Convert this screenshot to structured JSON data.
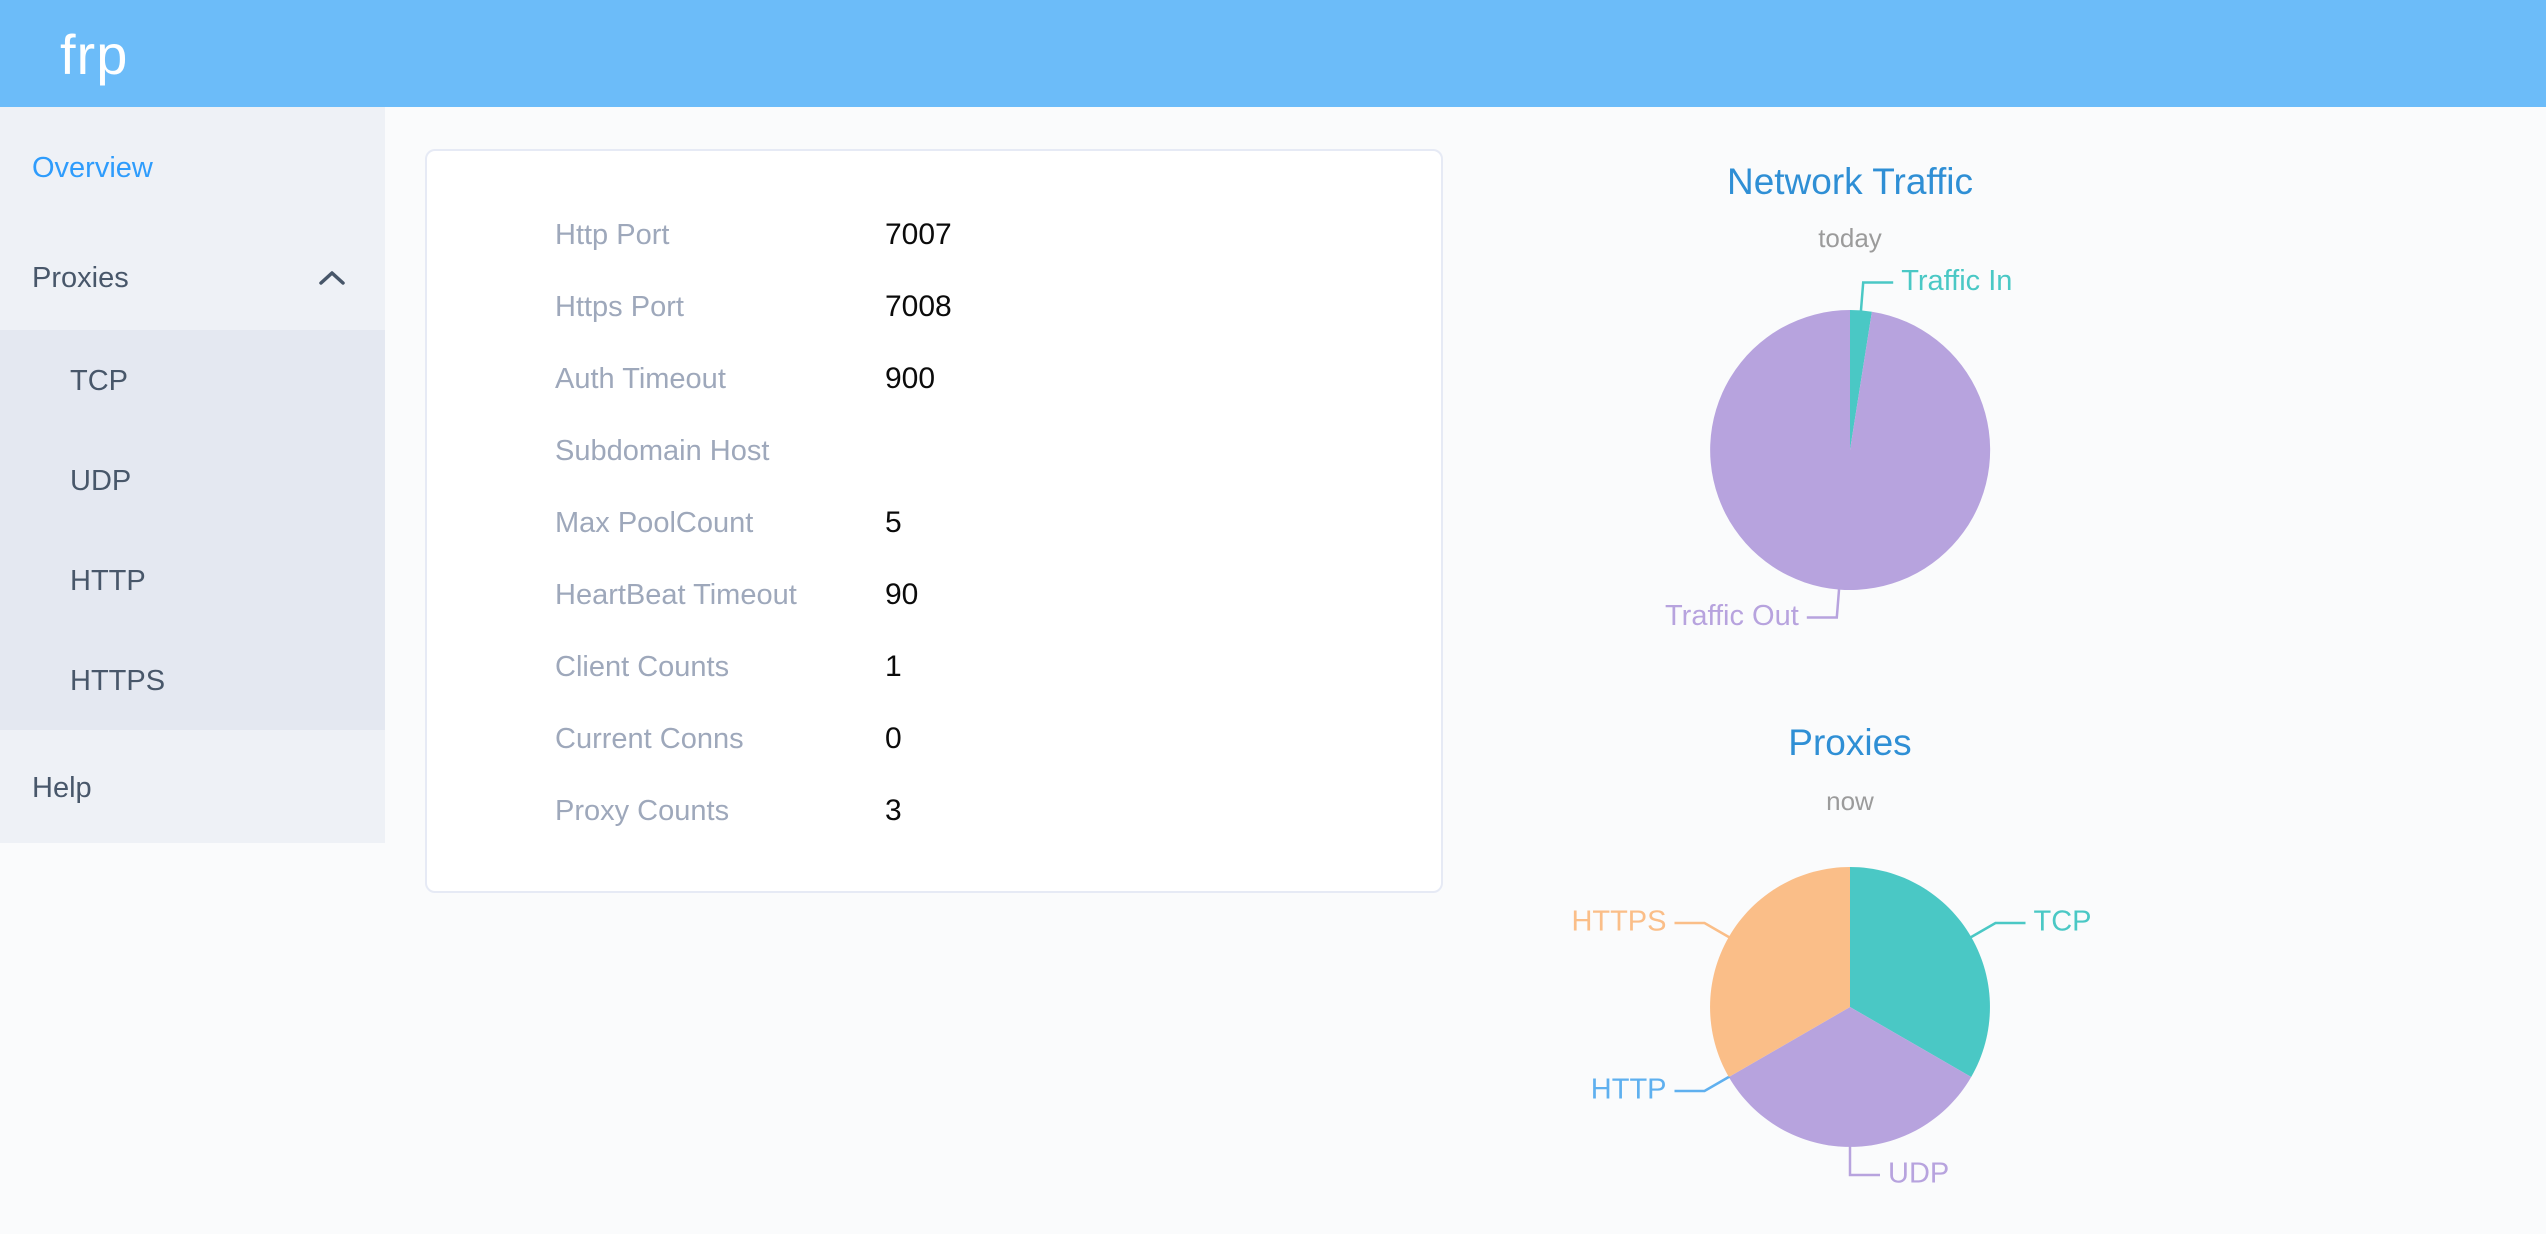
{
  "header": {
    "logo": "frp"
  },
  "sidebar": {
    "overview": "Overview",
    "proxies": "Proxies",
    "proxies_children": [
      "TCP",
      "UDP",
      "HTTP",
      "HTTPS"
    ],
    "help": "Help"
  },
  "card": {
    "rows": [
      {
        "label": "Http Port",
        "value": "7007"
      },
      {
        "label": "Https Port",
        "value": "7008"
      },
      {
        "label": "Auth Timeout",
        "value": "900"
      },
      {
        "label": "Subdomain Host",
        "value": ""
      },
      {
        "label": "Max PoolCount",
        "value": "5"
      },
      {
        "label": "HeartBeat Timeout",
        "value": "90"
      },
      {
        "label": "Client Counts",
        "value": "1"
      },
      {
        "label": "Current Conns",
        "value": "0"
      },
      {
        "label": "Proxy Counts",
        "value": "3"
      }
    ]
  },
  "chart_data": [
    {
      "type": "pie",
      "title": "Network Traffic",
      "subtitle": "today",
      "legend_position": "none",
      "series": [
        {
          "name": "Traffic In",
          "value": 2.5,
          "color": "#4ac8c5"
        },
        {
          "name": "Traffic Out",
          "value": 97.5,
          "color": "#b7a3de"
        }
      ]
    },
    {
      "type": "pie",
      "title": "Proxies",
      "subtitle": "now",
      "legend_position": "none",
      "series": [
        {
          "name": "TCP",
          "value": 1,
          "color": "#4ac8c5"
        },
        {
          "name": "UDP",
          "value": 1,
          "color": "#b7a3de"
        },
        {
          "name": "HTTP",
          "value": 0,
          "color": "#5fb0ef"
        },
        {
          "name": "HTTPS",
          "value": 1,
          "color": "#fabe88"
        }
      ]
    }
  ],
  "colors": {
    "header_bg": "#6cbcf9",
    "sidebar_bg": "#eef1f6",
    "submenu_bg": "#e4e8f1",
    "sidebar_text": "#48576a",
    "sidebar_active": "#2e9cfc",
    "chart_title": "#2f8fd5",
    "card_label": "#9ea8bb"
  }
}
